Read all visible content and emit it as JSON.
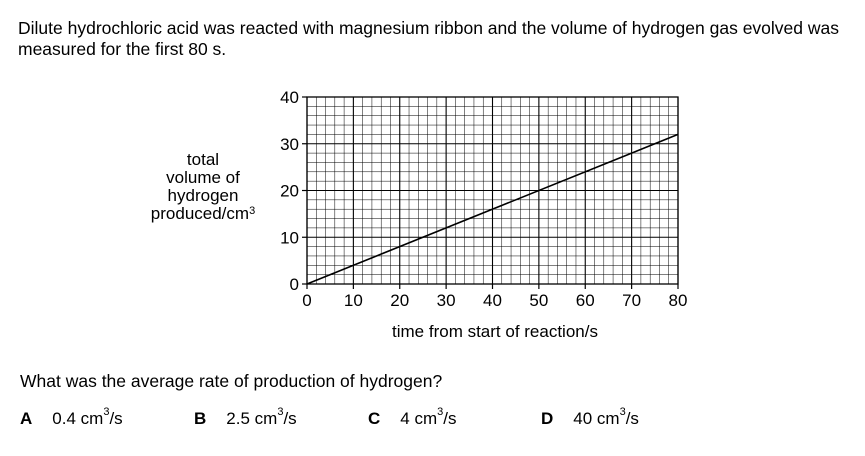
{
  "question": {
    "intro": "Dilute hydrochloric acid was reacted with magnesium ribbon and the volume of hydrogen gas evolved was measured for the first 80 s.",
    "prompt": "What was the average rate of production of hydrogen?",
    "options": [
      {
        "letter": "A",
        "value": "0.4 cm",
        "unit": "/s"
      },
      {
        "letter": "B",
        "value": "2.5 cm",
        "unit": "/s"
      },
      {
        "letter": "C",
        "value": "4 cm",
        "unit": "/s"
      },
      {
        "letter": "D",
        "value": "40 cm",
        "unit": "/s"
      }
    ]
  },
  "chart_data": {
    "type": "line",
    "ylabel_lines": [
      "total",
      "volume of",
      "hydrogen",
      "produced/cm"
    ],
    "ylabel_sup": "3",
    "xlabel": "time from start of reaction/s",
    "xlim": [
      0,
      80
    ],
    "ylim": [
      0,
      40
    ],
    "x_ticks": [
      0,
      10,
      20,
      30,
      40,
      50,
      60,
      70,
      80
    ],
    "y_ticks": [
      0,
      10,
      20,
      30,
      40
    ],
    "grid": true,
    "minor_grid_per_major": 5,
    "series": [
      {
        "x": [
          0,
          80
        ],
        "y": [
          0,
          32
        ]
      }
    ]
  }
}
